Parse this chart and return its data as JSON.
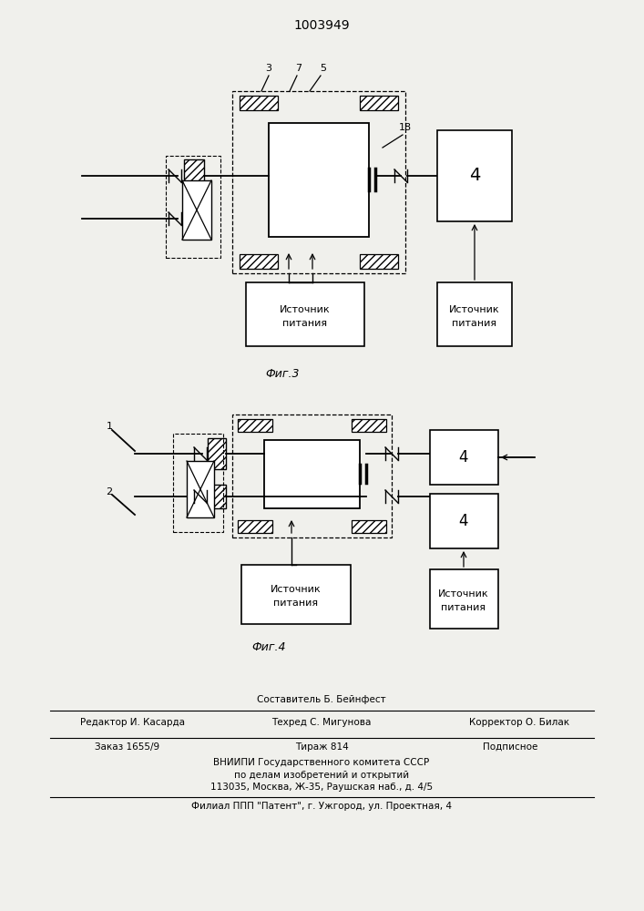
{
  "bg_color": "#f0f0ec",
  "title": "1003949",
  "fig3_label": "Фиг.3",
  "fig4_label": "Фиг.4",
  "footer": {
    "sostavitel": "Составитель Б. Бейнфест",
    "redaktor": "Редактор И. Касарда",
    "tehred": "Техред С. Мигунова",
    "korrektor": "Корректор О. Билак",
    "zakaz": "Заказ 1655/9",
    "tirazh": "Тираж 814",
    "podpisnoe": "Подписное",
    "vniipи": "ВНИИПИ Государственного комитета СССР",
    "po_delam": "по делам изобретений и открытий",
    "address": "113035, Москва, Ж-35, Раушская наб., д. 4/5",
    "filial": "Филиал ППП \"Патент\", г. Ужгород, ул. Проектная, 4"
  }
}
